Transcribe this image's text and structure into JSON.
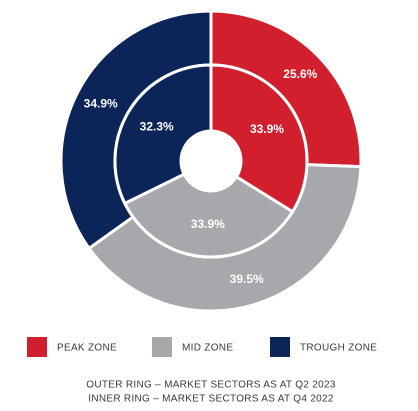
{
  "chart_data": {
    "type": "donut",
    "categories": [
      "PEAK ZONE",
      "MID ZONE",
      "TROUGH ZONE"
    ],
    "colors": [
      "#d11f2e",
      "#a7a8ab",
      "#0b2559"
    ],
    "series": [
      {
        "name": "OUTER RING – MARKET SECTORS AS AT Q2 2023",
        "values": [
          25.6,
          39.5,
          34.9
        ],
        "value_labels": [
          "25.6%",
          "39.5%",
          "34.9%"
        ]
      },
      {
        "name": "INNER RING – MARKET SECTORS AS AT Q4 2022",
        "values": [
          33.9,
          33.9,
          32.3
        ],
        "value_labels": [
          "33.9%",
          "33.9%",
          "32.3%"
        ]
      }
    ]
  }
}
